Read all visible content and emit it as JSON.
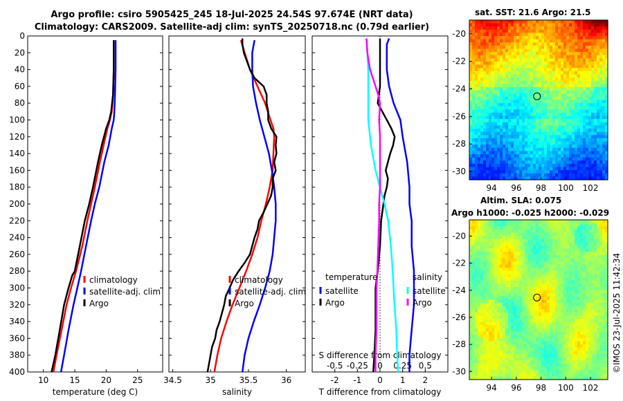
{
  "header": {
    "title_line1": "Argo profile: csiro 5905425_245 18-Jul-2025 24.54S 97.674E (NRT data)",
    "title_line2": "Climatology: CARS2009. Satellite-adj clim: synTS_20250718.nc (0.79d earlier)"
  },
  "sst_map": {
    "title": "sat. SST: 21.6 Argo: 21.5",
    "x_ticks": [
      "94",
      "96",
      "98",
      "100",
      "102"
    ],
    "y_ticks": [
      "-20",
      "-22",
      "-24",
      "-26",
      "-28",
      "-30"
    ],
    "x_range": [
      92.2,
      103.4
    ],
    "y_range": [
      -19.0,
      -30.6
    ],
    "float_marker": {
      "lon": 97.674,
      "lat": -24.54
    }
  },
  "sla_map": {
    "title": "Altim. SLA: 0.075",
    "subtitle": "Argo h1000: -0.025 h2000: -0.029",
    "x_ticks": [
      "94",
      "96",
      "98",
      "100",
      "102"
    ],
    "y_ticks": [
      "-20",
      "-22",
      "-24",
      "-26",
      "-28",
      "-30"
    ],
    "x_range": [
      92.2,
      103.4
    ],
    "y_range": [
      -18.8,
      -30.6
    ],
    "float_marker": {
      "lon": 97.674,
      "lat": -24.54
    }
  },
  "timestamp": "©IMOS 23-Jul-2025 11:42:34",
  "colors": {
    "climatology": "#ff0000",
    "satellite": "#0000ff",
    "argo": "#000000",
    "sal_sat": "#00ffff",
    "sal_argo": "#ff00ff"
  },
  "chart_data": [
    {
      "type": "line",
      "name": "temperature",
      "xlabel": "temperature (deg C)",
      "xlim": [
        7.5,
        29
      ],
      "x_ticks": [
        "10",
        "15",
        "20",
        "25"
      ],
      "ylim": [
        0,
        400
      ],
      "y_ticks": [
        "0",
        "20",
        "40",
        "60",
        "80",
        "100",
        "120",
        "140",
        "160",
        "180",
        "200",
        "220",
        "240",
        "260",
        "280",
        "300",
        "320",
        "340",
        "360",
        "380",
        "400"
      ],
      "legend": [
        "climatology",
        "satellite-adj. clim",
        "Argo"
      ],
      "series": [
        {
          "name": "climatology",
          "color": "#ff0000",
          "depth": [
            5,
            40,
            70,
            90,
            100,
            110,
            130,
            150,
            180,
            200,
            220,
            250,
            280,
            300,
            320,
            350,
            380,
            400
          ],
          "values": [
            21.2,
            21.2,
            21.1,
            20.9,
            20.6,
            20.2,
            19.6,
            19.0,
            18.2,
            17.6,
            17.0,
            16.2,
            15.2,
            14.4,
            13.7,
            12.9,
            12.1,
            11.6
          ]
        },
        {
          "name": "satellite-adj. clim",
          "color": "#0000ff",
          "depth": [
            5,
            40,
            70,
            90,
            100,
            110,
            130,
            150,
            180,
            200,
            220,
            250,
            280,
            300,
            320,
            350,
            380,
            400
          ],
          "values": [
            21.5,
            21.5,
            21.4,
            21.3,
            21.2,
            20.9,
            20.4,
            19.7,
            18.9,
            18.2,
            17.6,
            16.8,
            16.0,
            15.4,
            14.8,
            14.0,
            13.3,
            12.8
          ]
        },
        {
          "name": "Argo",
          "color": "#000000",
          "depth": [
            5,
            40,
            70,
            90,
            100,
            110,
            130,
            150,
            180,
            200,
            220,
            250,
            280,
            285,
            300,
            320,
            350,
            380,
            400
          ],
          "values": [
            21.2,
            21.2,
            21.1,
            20.8,
            20.5,
            20.0,
            19.3,
            18.7,
            17.9,
            17.3,
            16.6,
            15.8,
            15.0,
            14.6,
            14.0,
            13.3,
            12.6,
            11.9,
            11.3
          ]
        }
      ]
    },
    {
      "type": "line",
      "name": "salinity",
      "xlabel": "salinity",
      "xlim": [
        34.45,
        36.25
      ],
      "x_ticks": [
        "34.5",
        "35",
        "35.5",
        "36"
      ],
      "ylim": [
        0,
        400
      ],
      "legend": [
        "climatology",
        "satellite-adj. clim",
        "Argo"
      ],
      "series": [
        {
          "name": "climatology",
          "color": "#ff0000",
          "depth": [
            5,
            20,
            40,
            60,
            80,
            100,
            110,
            120,
            140,
            160,
            180,
            200,
            220,
            240,
            260,
            280,
            300,
            320,
            340,
            360,
            380,
            400
          ],
          "values": [
            35.4,
            35.45,
            35.52,
            35.62,
            35.72,
            35.79,
            35.83,
            35.84,
            35.83,
            35.82,
            35.78,
            35.73,
            35.67,
            35.62,
            35.55,
            35.47,
            35.38,
            35.29,
            35.21,
            35.14,
            35.09,
            35.05
          ]
        },
        {
          "name": "satellite-adj. clim",
          "color": "#0000ff",
          "depth": [
            5,
            20,
            40,
            60,
            80,
            100,
            120,
            140,
            160,
            180,
            200,
            220,
            240,
            260,
            280,
            300,
            320,
            340,
            360,
            380,
            400
          ],
          "values": [
            35.58,
            35.55,
            35.55,
            35.56,
            35.6,
            35.65,
            35.71,
            35.77,
            35.81,
            35.84,
            35.86,
            35.86,
            35.84,
            35.82,
            35.78,
            35.72,
            35.65,
            35.57,
            35.5,
            35.45,
            35.42
          ]
        },
        {
          "name": "Argo",
          "color": "#000000",
          "depth": [
            3,
            10,
            20,
            30,
            40,
            50,
            60,
            70,
            80,
            90,
            100,
            110,
            120,
            130,
            140,
            150,
            160,
            170,
            180,
            190,
            200,
            210,
            220,
            230,
            240,
            250,
            260,
            270,
            280,
            290,
            300,
            310,
            320,
            330,
            340,
            350,
            360,
            370,
            380,
            390,
            400
          ],
          "values": [
            35.42,
            35.42,
            35.44,
            35.48,
            35.52,
            35.58,
            35.7,
            35.74,
            35.74,
            35.76,
            35.76,
            35.8,
            35.87,
            35.86,
            35.87,
            35.84,
            35.86,
            35.82,
            35.82,
            35.8,
            35.75,
            35.7,
            35.64,
            35.62,
            35.58,
            35.55,
            35.52,
            35.45,
            35.37,
            35.3,
            35.25,
            35.2,
            35.18,
            35.15,
            35.12,
            35.08,
            35.06,
            35.02,
            35.0,
            34.98,
            34.96
          ]
        }
      ]
    },
    {
      "type": "line",
      "name": "difference",
      "xlabel": "T difference from climatology",
      "xlabel_top": "S difference from climatology",
      "xlim": [
        -3,
        3
      ],
      "x_ticks": [
        "-2",
        "-1",
        "0",
        "1",
        "2"
      ],
      "s_ticks": [
        "-0.5",
        "-0.25",
        "0",
        "0.25",
        "0.5"
      ],
      "ylim": [
        0,
        400
      ],
      "legend_left_title": "temperature",
      "legend_left": [
        "satellite",
        "Argo"
      ],
      "legend_right_title": "salinity",
      "legend_right": [
        "satellite",
        "Argo"
      ],
      "series": [
        {
          "name": "temperature satellite",
          "color": "#0000ff",
          "depth": [
            3,
            10,
            20,
            40,
            60,
            80,
            100,
            120,
            150,
            180,
            200,
            220,
            250,
            280,
            300,
            320,
            350,
            380,
            400
          ],
          "values": [
            0.4,
            0.3,
            0.3,
            0.3,
            0.4,
            0.6,
            0.9,
            1.0,
            1.2,
            1.3,
            1.3,
            1.4,
            1.4,
            1.5,
            1.5,
            1.5,
            1.4,
            1.3,
            1.3
          ]
        },
        {
          "name": "temperature Argo",
          "color": "#000000",
          "depth": [
            3,
            20,
            40,
            60,
            80,
            100,
            110,
            120,
            130,
            140,
            150,
            160,
            170,
            180,
            190,
            200,
            220,
            250,
            280,
            300,
            320,
            350,
            380,
            400
          ],
          "values": [
            0.0,
            0.0,
            0.0,
            0.0,
            -0.1,
            0.3,
            0.5,
            0.65,
            0.58,
            0.45,
            0.35,
            0.25,
            0.35,
            0.3,
            0.2,
            0.15,
            0.05,
            0.0,
            -0.1,
            -0.2,
            -0.2,
            -0.2,
            -0.25,
            -0.3
          ]
        },
        {
          "name": "salinity satellite",
          "color": "#00ffff",
          "depth": [
            3,
            20,
            40,
            60,
            80,
            100,
            130,
            160,
            180,
            200,
            220,
            250,
            280,
            300,
            320,
            350,
            380,
            400
          ],
          "values": [
            -0.15,
            -0.14,
            -0.13,
            -0.13,
            -0.13,
            -0.13,
            -0.1,
            -0.05,
            0.0,
            0.05,
            0.09,
            0.12,
            0.14,
            0.15,
            0.16,
            0.18,
            0.19,
            0.2
          ]
        },
        {
          "name": "salinity Argo",
          "color": "#ff00ff",
          "depth": [
            3,
            20,
            40,
            60,
            70,
            80,
            100,
            120,
            140,
            160,
            180,
            200,
            220,
            250,
            280,
            300,
            320,
            350,
            380,
            400
          ],
          "values": [
            -0.15,
            -0.14,
            -0.11,
            -0.05,
            -0.02,
            0.0,
            -0.01,
            0.0,
            0.0,
            0.0,
            0.0,
            -0.01,
            -0.01,
            -0.02,
            -0.03,
            -0.04,
            -0.04,
            -0.04,
            -0.05,
            -0.05
          ]
        }
      ]
    }
  ]
}
